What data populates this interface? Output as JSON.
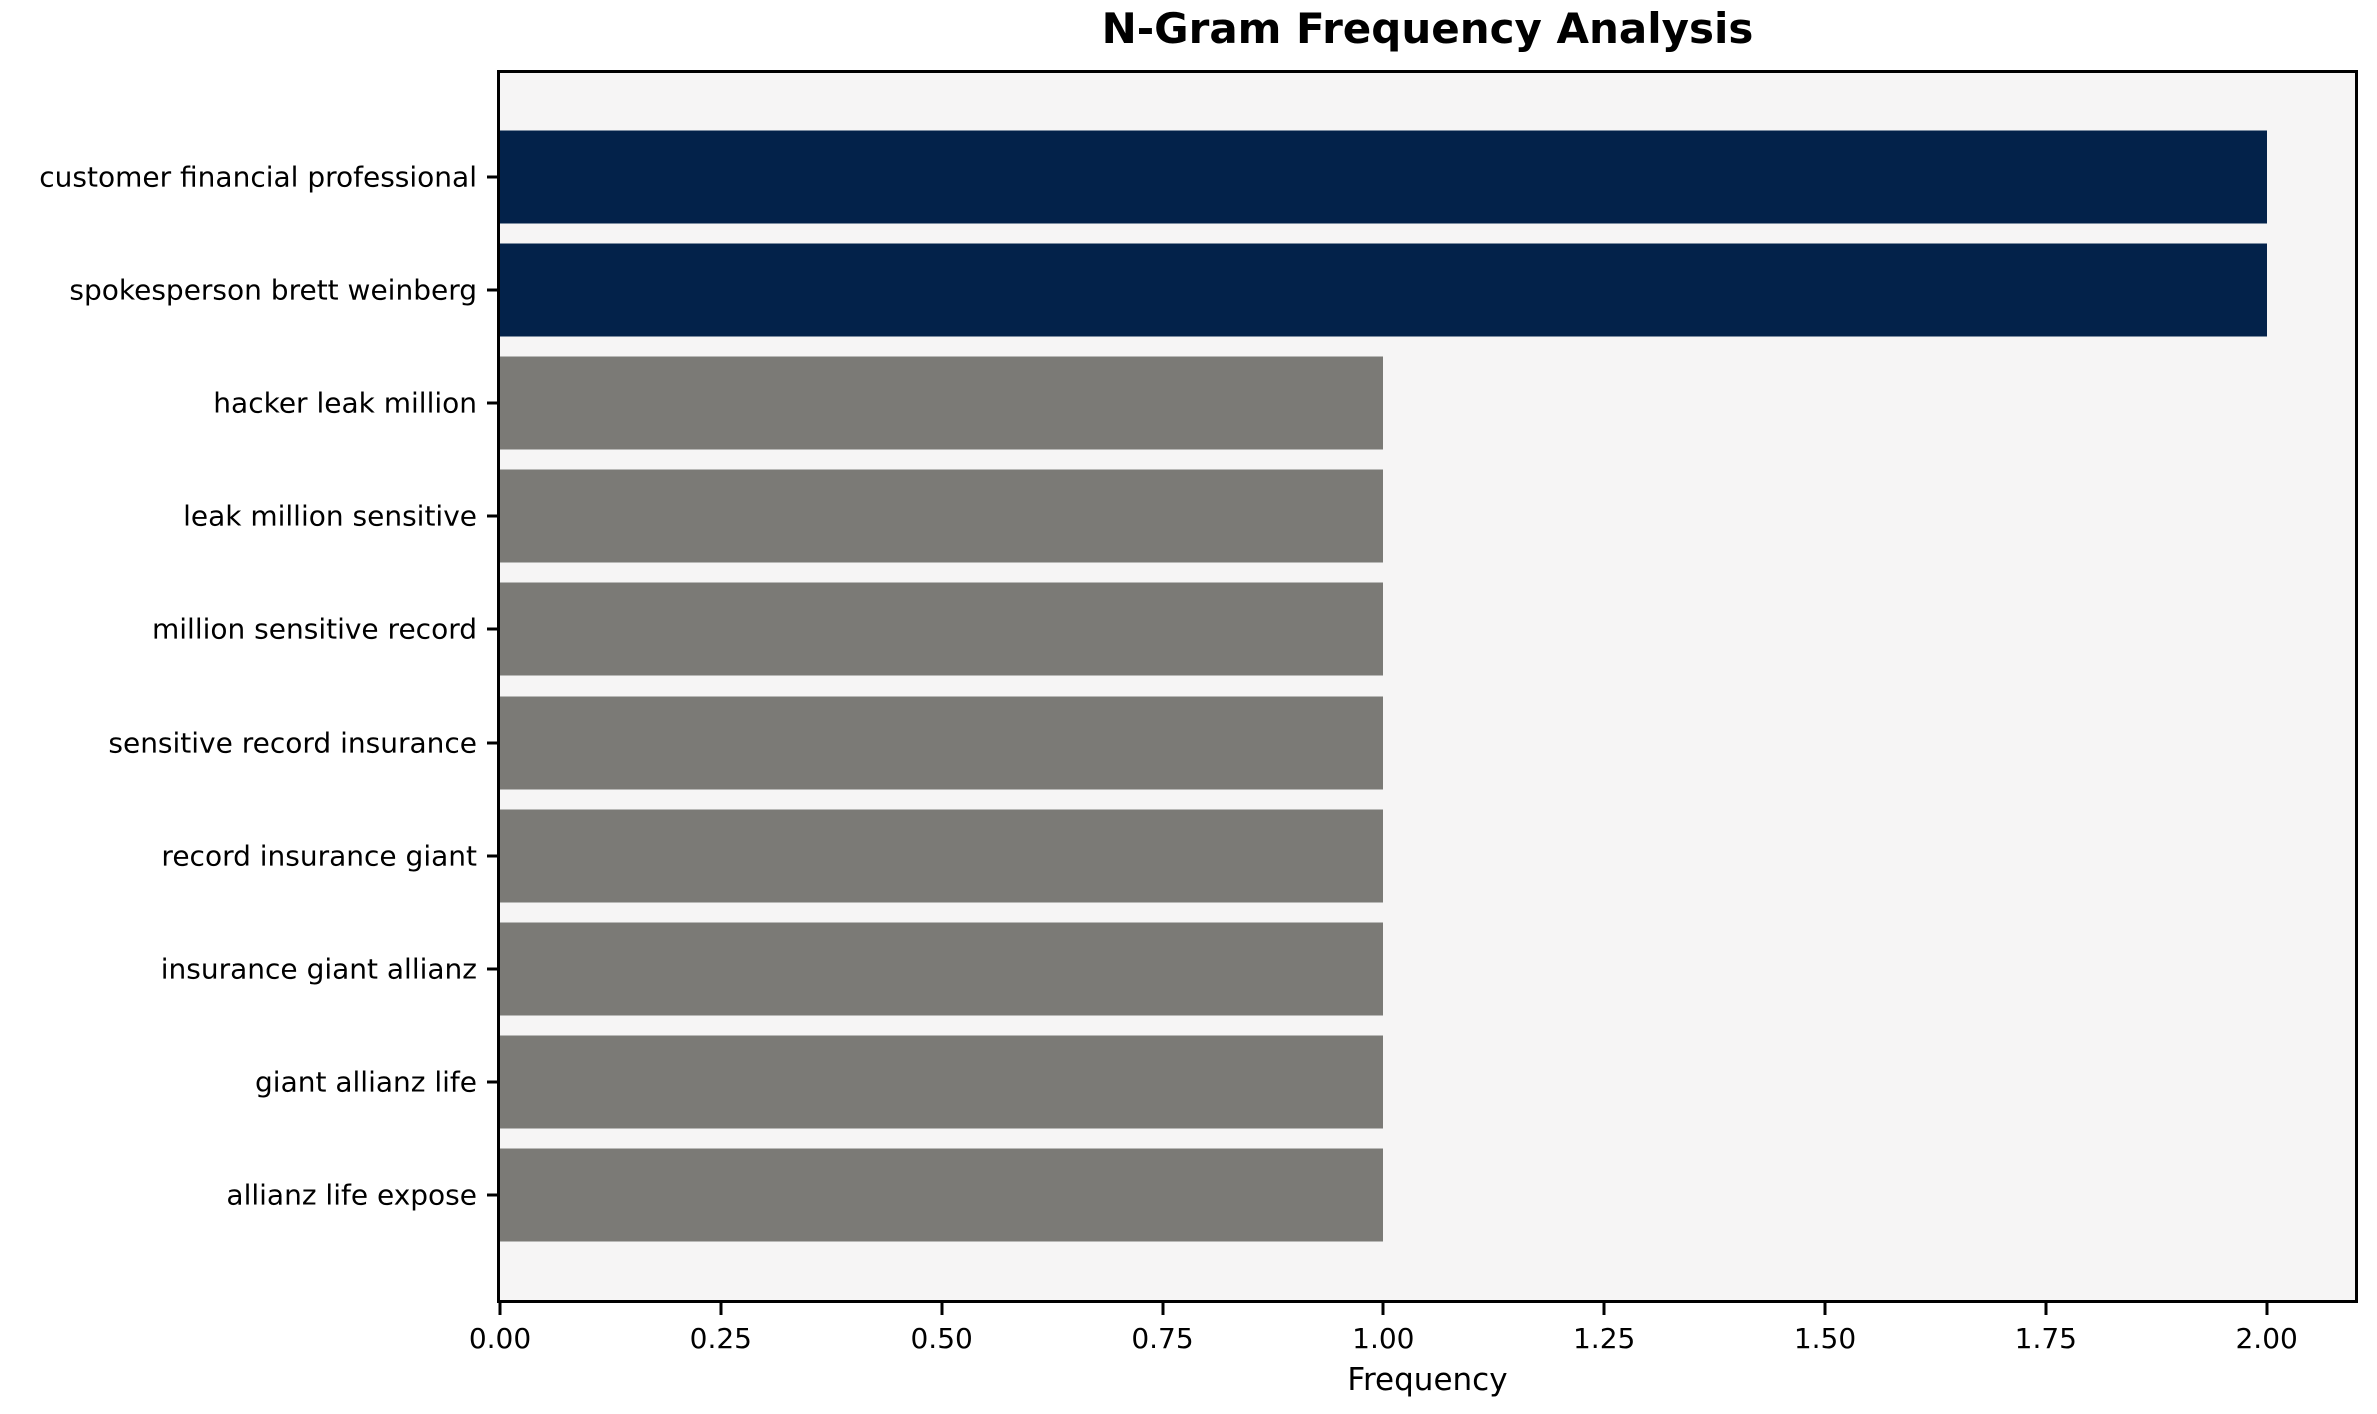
{
  "chart_data": {
    "type": "bar",
    "orientation": "horizontal",
    "title": "N-Gram Frequency Analysis",
    "xlabel": "Frequency",
    "ylabel": "",
    "categories": [
      "customer financial professional",
      "spokesperson brett weinberg",
      "hacker leak million",
      "leak million sensitive",
      "million sensitive record",
      "sensitive record insurance",
      "record insurance giant",
      "insurance giant allianz",
      "giant allianz life",
      "allianz life expose"
    ],
    "values": [
      2,
      2,
      1,
      1,
      1,
      1,
      1,
      1,
      1,
      1
    ],
    "bar_colors": [
      "#03224a",
      "#03224a",
      "#7b7a76",
      "#7b7a76",
      "#7b7a76",
      "#7b7a76",
      "#7b7a76",
      "#7b7a76",
      "#7b7a76",
      "#7b7a76"
    ],
    "xlim": [
      0,
      2.1
    ],
    "xticks": [
      0.0,
      0.25,
      0.5,
      0.75,
      1.0,
      1.25,
      1.5,
      1.75,
      2.0
    ],
    "xtick_labels": [
      "0.00",
      "0.25",
      "0.50",
      "0.75",
      "1.00",
      "1.25",
      "1.50",
      "1.75",
      "2.00"
    ],
    "grid": false,
    "legend": false
  },
  "colors": {
    "highlight_bar": "#03224a",
    "default_bar": "#7b7a76",
    "plot_background": "#f6f5f5",
    "figure_background": "#ffffff",
    "spine": "#000000",
    "text": "#000000"
  }
}
